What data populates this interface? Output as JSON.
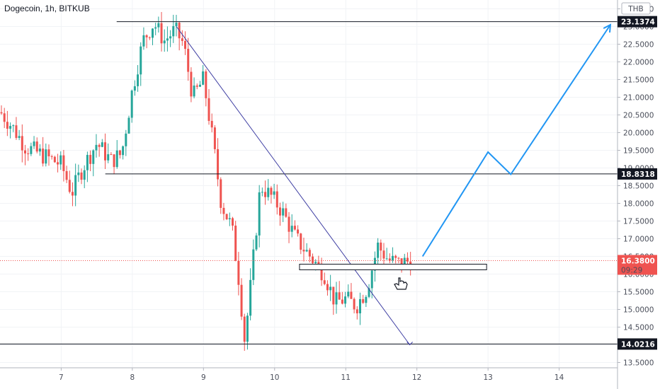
{
  "header": {
    "title": "Dogecoin, 1h, BITKUB"
  },
  "currency_badge": "THB",
  "colors": {
    "up": "#26a69a",
    "down": "#ef5350",
    "projection": "#2196f3",
    "trendline": "#3f3fa3",
    "level": "#131722",
    "current_price": "#ef5350"
  },
  "current_price": {
    "value": "16.3800",
    "countdown": "09:29"
  },
  "levels": [
    {
      "label": "23.1374",
      "value": 23.1374
    },
    {
      "label": "18.8318",
      "value": 18.8318
    },
    {
      "label": "14.0216",
      "value": 14.0216
    }
  ],
  "chart_data": {
    "type": "candlestick",
    "title": "Dogecoin, 1h, BITKUB",
    "ylabel": "THB",
    "ylim": [
      13.35,
      23.75
    ],
    "xlim": [
      6.14,
      14.82
    ],
    "x_ticks": [
      {
        "label": "7",
        "value": 7
      },
      {
        "label": "8",
        "value": 8
      },
      {
        "label": "9",
        "value": 9
      },
      {
        "label": "10",
        "value": 10
      },
      {
        "label": "11",
        "value": 11
      },
      {
        "label": "12",
        "value": 12
      },
      {
        "label": "13",
        "value": 13
      },
      {
        "label": "14",
        "value": 14
      }
    ],
    "y_ticks": [
      "13.5000",
      "14.0000",
      "14.5000",
      "15.0000",
      "15.5000",
      "16.0000",
      "16.5000",
      "17.0000",
      "17.5000",
      "18.0000",
      "18.5000",
      "19.0000",
      "19.5000",
      "20.0000",
      "20.5000",
      "21.0000",
      "21.5000",
      "22.0000",
      "22.5000",
      "23.0000",
      "23.5000"
    ],
    "price_path": [
      [
        6.14,
        20.6
      ],
      [
        6.3,
        20.2
      ],
      [
        6.5,
        19.6
      ],
      [
        6.8,
        19.3
      ],
      [
        7.0,
        19.1
      ],
      [
        7.15,
        18.3
      ],
      [
        7.3,
        19.0
      ],
      [
        7.5,
        19.7
      ],
      [
        7.7,
        19.2
      ],
      [
        7.85,
        19.4
      ],
      [
        8.0,
        21.2
      ],
      [
        8.15,
        22.6
      ],
      [
        8.3,
        23.1
      ],
      [
        8.45,
        22.6
      ],
      [
        8.6,
        22.9
      ],
      [
        8.72,
        22.5
      ],
      [
        8.85,
        21.0
      ],
      [
        9.0,
        21.5
      ],
      [
        9.15,
        19.5
      ],
      [
        9.25,
        18.0
      ],
      [
        9.4,
        17.3
      ],
      [
        9.5,
        15.8
      ],
      [
        9.58,
        14.1
      ],
      [
        9.68,
        16.0
      ],
      [
        9.8,
        18.5
      ],
      [
        9.95,
        18.2
      ],
      [
        10.1,
        17.8
      ],
      [
        10.3,
        17.0
      ],
      [
        10.5,
        16.5
      ],
      [
        10.7,
        16.0
      ],
      [
        10.85,
        15.2
      ],
      [
        11.0,
        15.3
      ],
      [
        11.15,
        15.1
      ],
      [
        11.3,
        15.6
      ],
      [
        11.45,
        16.8
      ],
      [
        11.6,
        16.4
      ],
      [
        11.75,
        16.3
      ],
      [
        11.92,
        16.38
      ]
    ],
    "series": [
      {
        "type": "horizontal_level",
        "y": 23.1374,
        "x_from": 7.78,
        "x_to": 14.82
      },
      {
        "type": "horizontal_level",
        "y": 18.8318,
        "x_from": 7.62,
        "x_to": 14.82
      },
      {
        "type": "horizontal_level",
        "y": 14.0216,
        "x_from": 6.14,
        "x_to": 14.82
      },
      {
        "type": "trendline",
        "points": [
          [
            8.62,
            23.0
          ],
          [
            9.95,
            18.9
          ],
          [
            11.9,
            14.0
          ]
        ]
      },
      {
        "type": "projection",
        "points": [
          [
            12.08,
            16.5
          ],
          [
            13.0,
            19.45
          ],
          [
            13.32,
            18.82
          ],
          [
            14.72,
            23.05
          ]
        ]
      },
      {
        "type": "zone_box",
        "x_from": 10.35,
        "x_to": 12.98,
        "y_from": 16.12,
        "y_to": 16.28
      }
    ]
  }
}
